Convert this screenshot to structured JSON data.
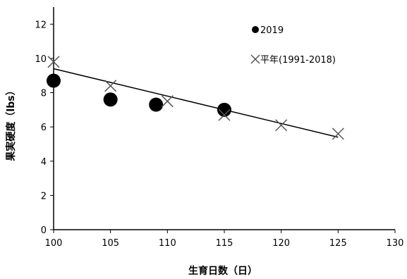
{
  "chart_data": {
    "type": "scatter",
    "xlabel": "生育日数（日）",
    "ylabel": "果実硬度（lbs）",
    "xlim": [
      100,
      130
    ],
    "ylim": [
      0,
      13
    ],
    "xticks": [
      100,
      105,
      110,
      115,
      120,
      125,
      130
    ],
    "yticks": [
      0,
      2,
      4,
      6,
      8,
      10,
      12
    ],
    "grid": false,
    "legend_position": "top-right",
    "series": [
      {
        "name": "2019",
        "marker": "filled-circle",
        "color": "#000000",
        "points": [
          {
            "x": 100,
            "y": 8.7
          },
          {
            "x": 105,
            "y": 7.6
          },
          {
            "x": 109,
            "y": 7.3
          },
          {
            "x": 115,
            "y": 7.0
          }
        ]
      },
      {
        "name": "平年(1991-2018)",
        "marker": "x",
        "color": "#555555",
        "points": [
          {
            "x": 100,
            "y": 9.8
          },
          {
            "x": 105,
            "y": 8.4
          },
          {
            "x": 110,
            "y": 7.5
          },
          {
            "x": 115,
            "y": 6.7
          },
          {
            "x": 120,
            "y": 6.1
          },
          {
            "x": 125,
            "y": 5.6
          }
        ]
      }
    ],
    "trendline": {
      "x": [
        100,
        125
      ],
      "y": [
        9.4,
        5.4
      ]
    }
  }
}
